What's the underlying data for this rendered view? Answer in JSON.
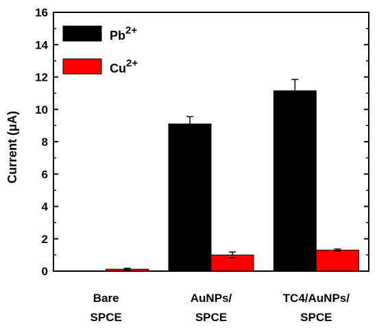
{
  "chart_data": {
    "type": "bar",
    "categories": [
      [
        "Bare",
        "SPCE"
      ],
      [
        "AuNPs/",
        "SPCE"
      ],
      [
        "TC4/AuNPs/",
        "SPCE"
      ]
    ],
    "series": [
      {
        "name": "Pb",
        "superscript": "2+",
        "color": "#000000",
        "values": [
          0.0,
          9.1,
          11.15
        ],
        "errors": [
          0.0,
          0.45,
          0.7
        ]
      },
      {
        "name": "Cu",
        "superscript": "2+",
        "color": "#ff0000",
        "values": [
          0.12,
          1.0,
          1.3
        ],
        "errors": [
          0.06,
          0.18,
          0.07
        ]
      }
    ],
    "ylabel": "Current (μA)",
    "xlabel": "",
    "ylim": [
      0,
      16
    ],
    "yticks": [
      0,
      2,
      4,
      6,
      8,
      10,
      12,
      14,
      16
    ],
    "grid": false,
    "legend_position": "top-left"
  }
}
